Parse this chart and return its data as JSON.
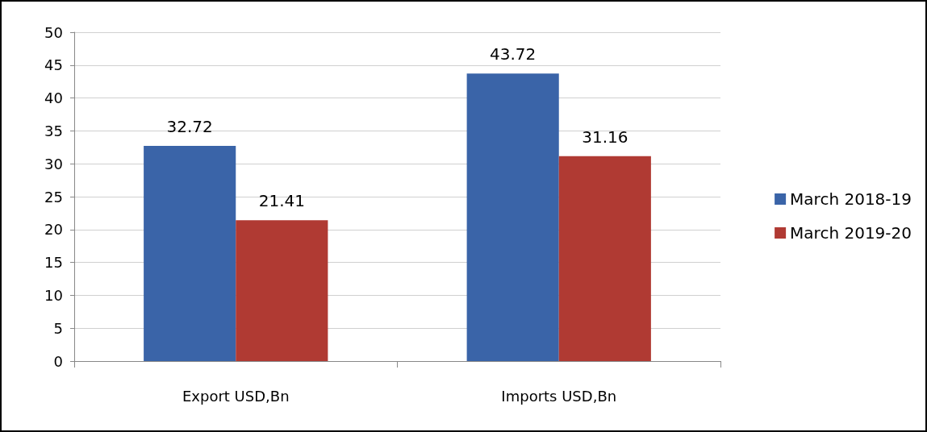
{
  "chart_data": {
    "type": "bar",
    "categories": [
      "Export USD,Bn",
      "Imports USD,Bn"
    ],
    "series": [
      {
        "name": "March 2018-19",
        "color": "#3a64a8",
        "values": [
          32.72,
          43.72
        ]
      },
      {
        "name": "March 2019-20",
        "color": "#b03a33",
        "values": [
          21.41,
          31.16
        ]
      }
    ],
    "ylim": [
      0,
      50
    ],
    "yticks": [
      0,
      5,
      10,
      15,
      20,
      25,
      30,
      35,
      40,
      45,
      50
    ],
    "grid": "y",
    "legend": "right",
    "data_labels": true
  }
}
